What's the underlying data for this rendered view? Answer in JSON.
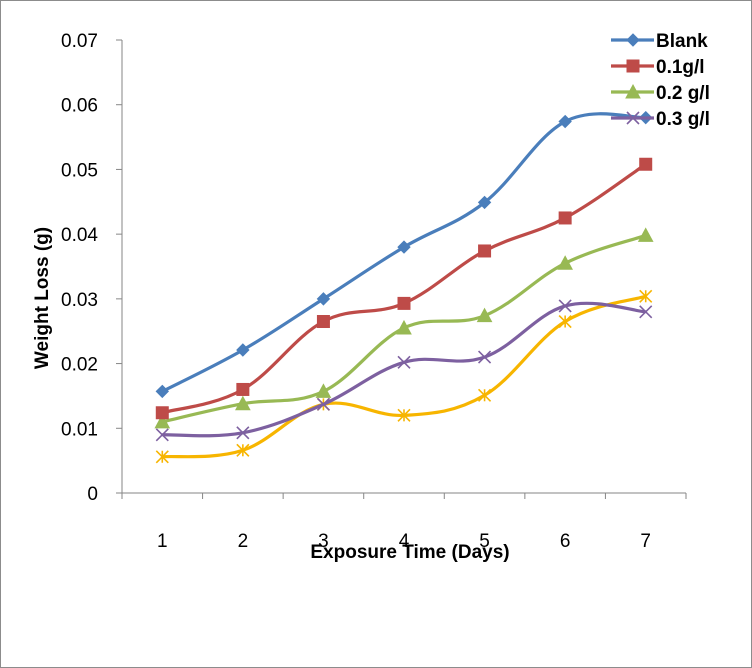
{
  "chart_data": {
    "type": "line",
    "x": [
      1,
      2,
      3,
      4,
      5,
      6,
      7
    ],
    "y_ticks": [
      "0",
      "0.01",
      "0.02",
      "0.03",
      "0.04",
      "0.05",
      "0.06",
      "0.07"
    ],
    "ylim": [
      0,
      0.07
    ],
    "xlabel": "Exposure Time (Days)",
    "ylabel": "Weight Loss (g)",
    "grid": false,
    "legend_position": "top-right",
    "series": [
      {
        "name": "Blank",
        "color": "#4a7ebb",
        "marker": "diamond",
        "values": [
          0.0157,
          0.0221,
          0.03,
          0.038,
          0.0449,
          0.0574,
          0.058
        ]
      },
      {
        "name": "0.1g/l",
        "color": "#be4b48",
        "marker": "square",
        "values": [
          0.0124,
          0.016,
          0.0265,
          0.0293,
          0.0374,
          0.0425,
          0.0508
        ]
      },
      {
        "name": "0.2 g/l",
        "color": "#98b954",
        "marker": "triangle",
        "values": [
          0.011,
          0.0138,
          0.0157,
          0.0255,
          0.0274,
          0.0355,
          0.0398
        ]
      },
      {
        "name": "0.3 g/l",
        "color": "#7d60a0",
        "marker": "x",
        "values": [
          0.009,
          0.0093,
          0.0137,
          0.0202,
          0.021,
          0.0289,
          0.028
        ]
      },
      {
        "name": "",
        "color": "#f7b500",
        "marker": "star",
        "values": [
          0.0056,
          0.0066,
          0.0137,
          0.012,
          0.0151,
          0.0265,
          0.0304
        ]
      }
    ]
  }
}
